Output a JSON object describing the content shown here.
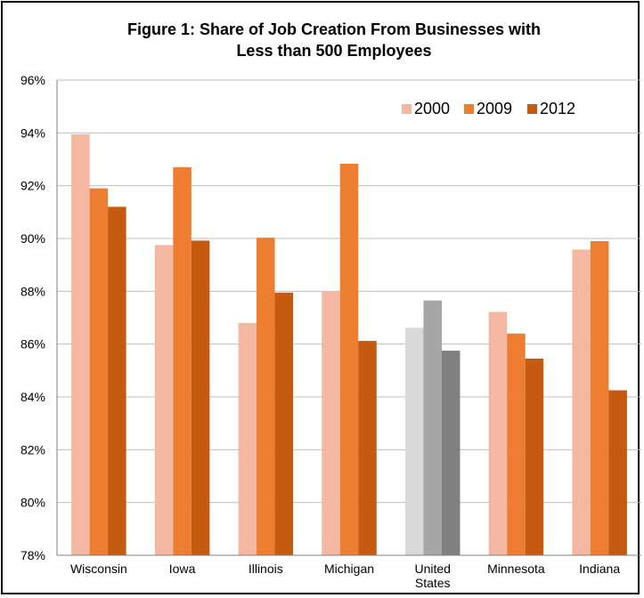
{
  "chart_data": {
    "type": "bar",
    "title": "Figure 1:  Share of Job Creation From Businesses with",
    "title_line2": "Less than 500 Employees",
    "categories": [
      "Wisconsin",
      "Iowa",
      "Illinois",
      "Michigan",
      "United States",
      "Minnesota",
      "Indiana"
    ],
    "category_labels": [
      [
        "Wisconsin"
      ],
      [
        "Iowa"
      ],
      [
        "Illinois"
      ],
      [
        "Michigan"
      ],
      [
        "United",
        "States"
      ],
      [
        "Minnesota"
      ],
      [
        "Indiana"
      ]
    ],
    "series": [
      {
        "name": "2000",
        "values": [
          93.95,
          89.75,
          86.8,
          88.0,
          86.62,
          87.22,
          89.58
        ]
      },
      {
        "name": "2009",
        "values": [
          91.9,
          92.7,
          90.03,
          92.83,
          87.65,
          86.4,
          89.9
        ]
      },
      {
        "name": "2012",
        "values": [
          91.2,
          89.92,
          87.95,
          86.12,
          85.75,
          85.45,
          84.25
        ]
      }
    ],
    "series_colors": [
      "#f4b7a2",
      "#ed7d31",
      "#c55a11"
    ],
    "highlight_category": "United States",
    "highlight_colors": [
      "#d9d9d9",
      "#a6a6a6",
      "#808080"
    ],
    "ylim": [
      78,
      96
    ],
    "yticks": [
      "78%",
      "80%",
      "82%",
      "84%",
      "86%",
      "88%",
      "90%",
      "92%",
      "94%",
      "96%"
    ],
    "xlabel": "",
    "ylabel": "",
    "grid": true,
    "legend_position": "top-right"
  }
}
